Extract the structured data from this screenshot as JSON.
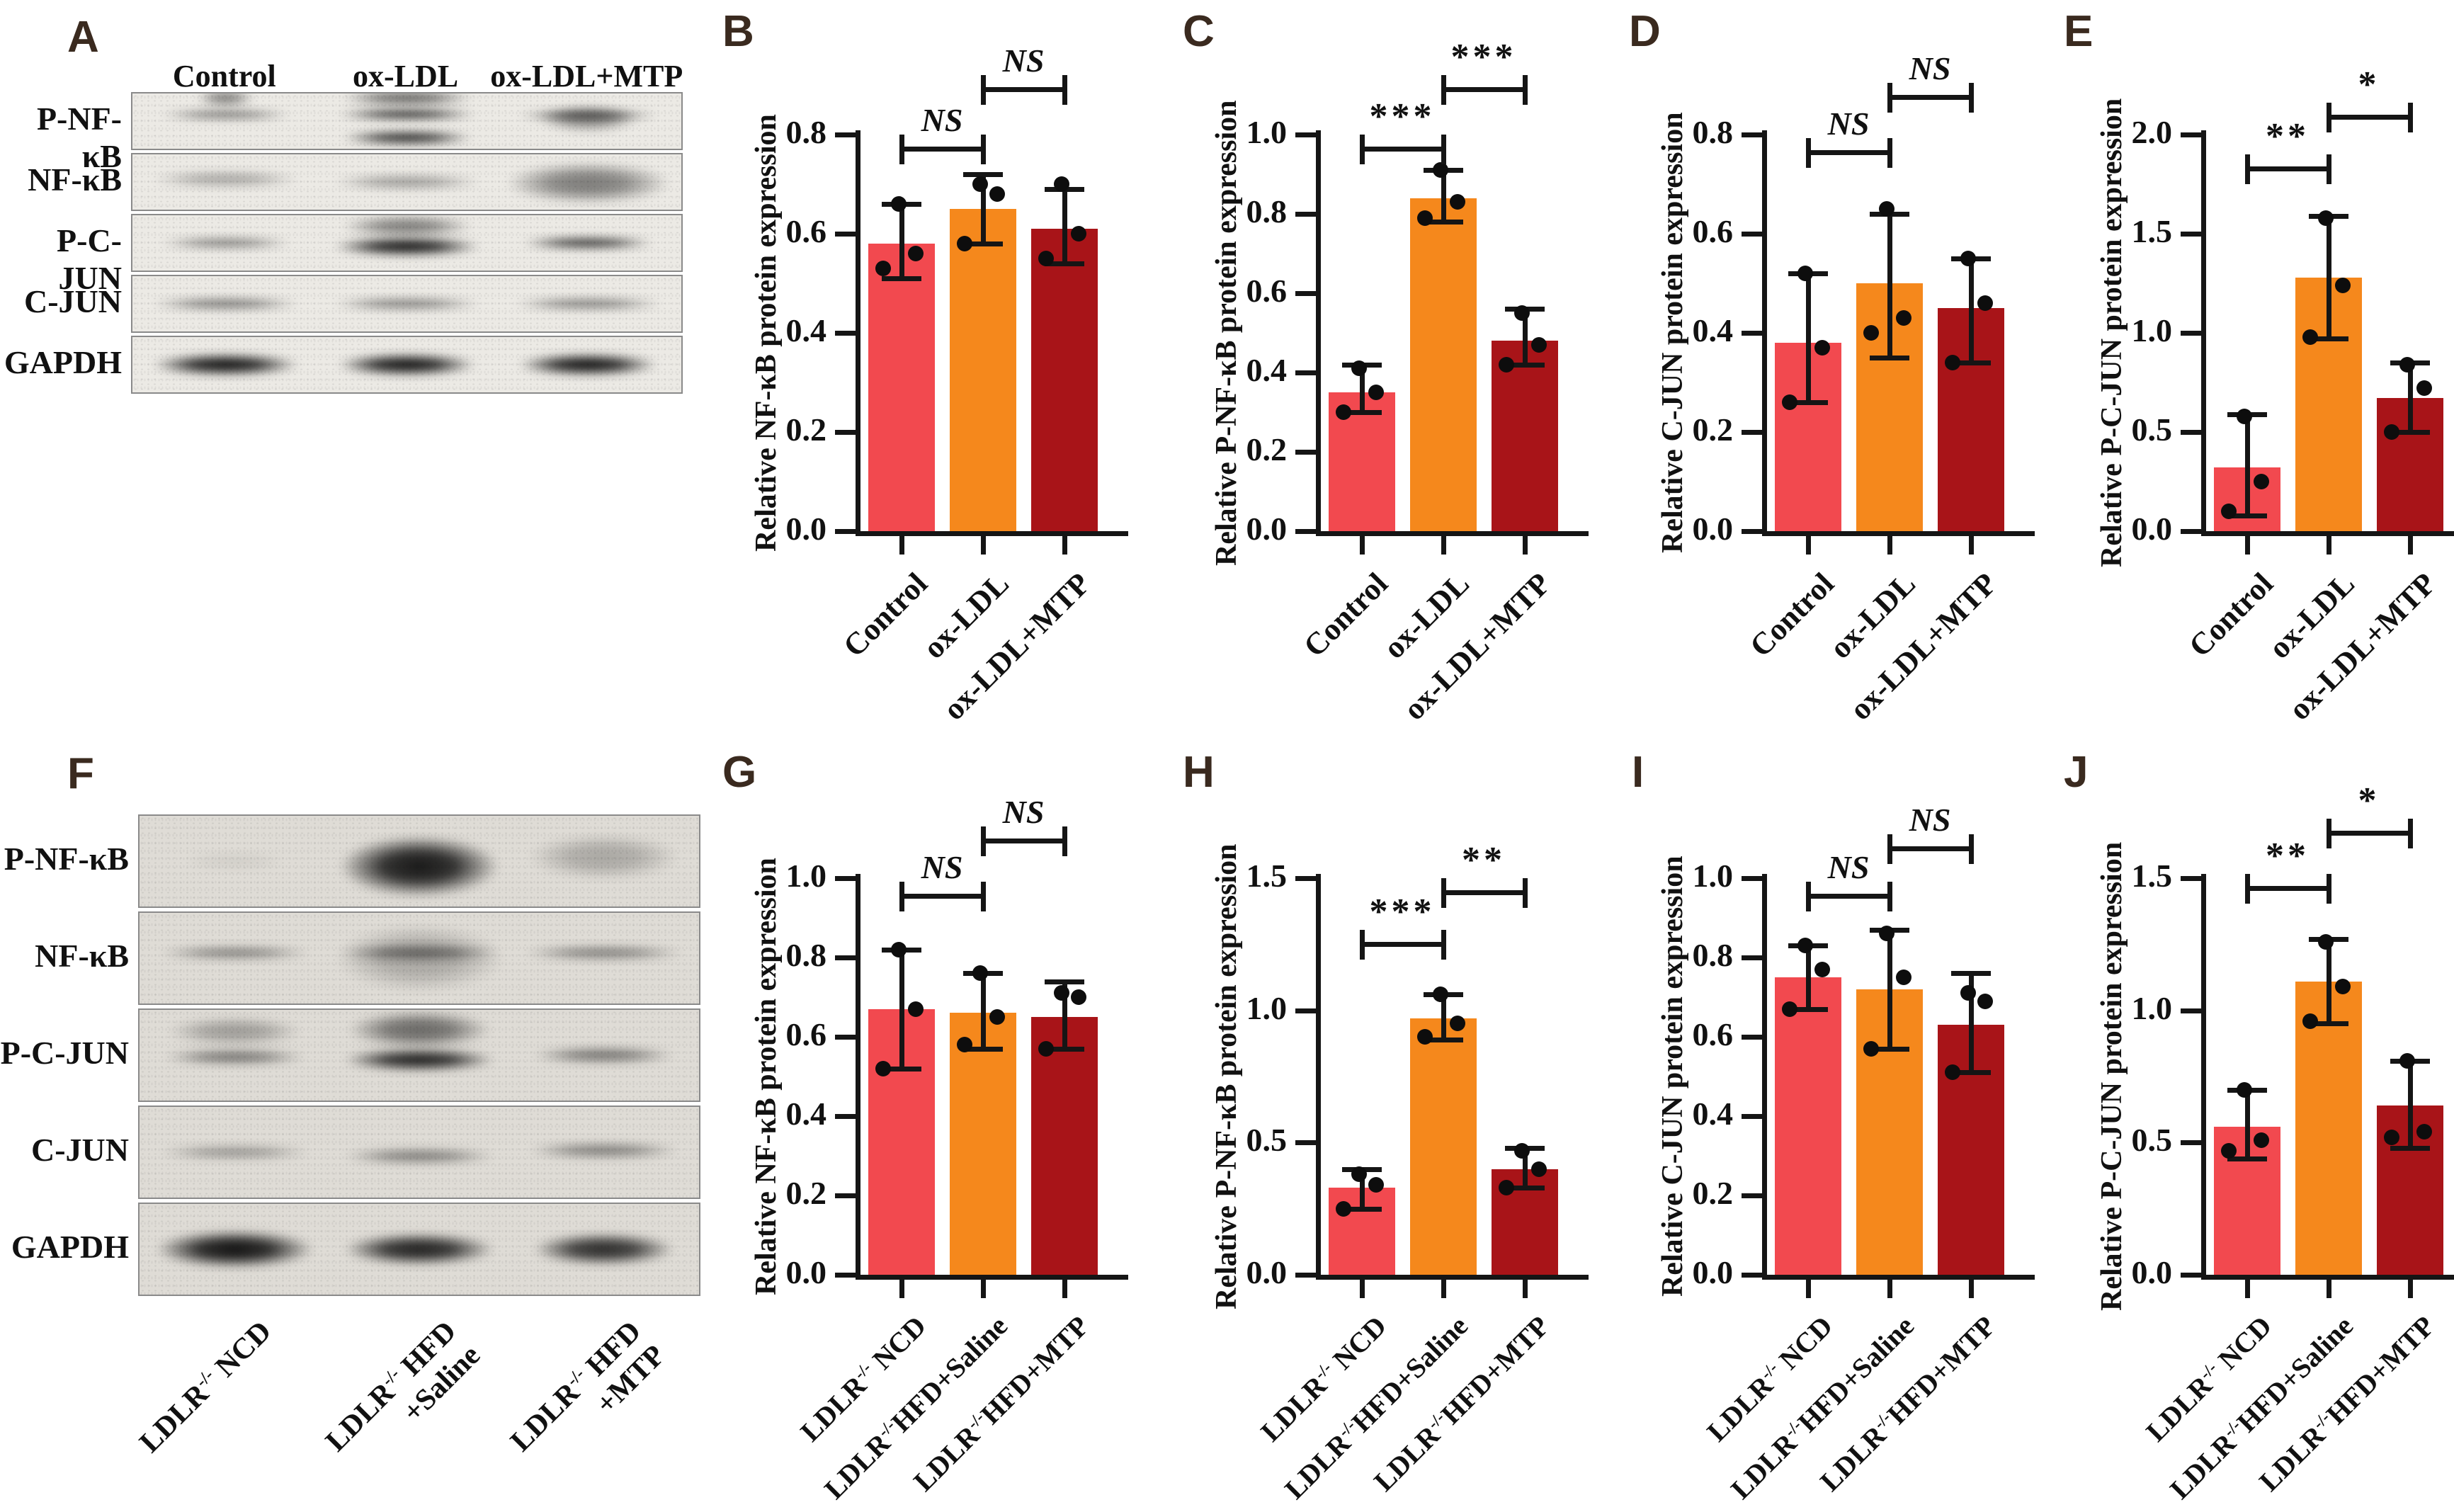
{
  "colors": {
    "bars": [
      "#F2494F",
      "#F5881C",
      "#A81418"
    ],
    "axis": "#151515",
    "panel_letter": "#3A2A1F"
  },
  "blots": {
    "A": {
      "letter": "A",
      "lane_headers": [
        "Control",
        "ox-LDL",
        "ox-LDL+MTP"
      ],
      "row_labels": [
        "P-NF-κB",
        "NF-κB",
        "P-C-JUN",
        "C-JUN",
        "GAPDH"
      ],
      "rows": [
        {
          "lanes": [
            [
              {
                "i": 0.55,
                "h": 0.18,
                "w": 0.8,
                "dy": -0.12
              },
              {
                "i": 0.5,
                "h": 0.3,
                "w": 0.35,
                "dy": -0.42
              }
            ],
            [
              {
                "i": 0.92,
                "h": 0.2,
                "w": 0.85,
                "dy": -0.12
              },
              {
                "i": 0.85,
                "h": 0.26,
                "w": 0.8,
                "dy": 0.3
              },
              {
                "i": 0.6,
                "h": 0.3,
                "w": 0.8,
                "dy": -0.42
              }
            ],
            [
              {
                "i": 0.72,
                "h": 0.18,
                "w": 0.85,
                "dy": -0.1
              },
              {
                "i": 0.4,
                "h": 0.5,
                "w": 0.6,
                "dy": -0.05
              }
            ]
          ]
        },
        {
          "lanes": [
            [
              {
                "i": 0.3,
                "h": 0.3,
                "w": 0.9,
                "dy": -0.05
              }
            ],
            [
              {
                "i": 0.35,
                "h": 0.28,
                "w": 0.9,
                "dy": 0
              }
            ],
            [
              {
                "i": 0.5,
                "h": 0.75,
                "w": 1.0,
                "dy": 0.02
              }
            ]
          ]
        },
        {
          "lanes": [
            [
              {
                "i": 0.5,
                "h": 0.2,
                "w": 0.8,
                "dy": 0
              }
            ],
            [
              {
                "i": 0.95,
                "h": 0.36,
                "w": 0.9,
                "dy": 0.06
              },
              {
                "i": 0.5,
                "h": 0.4,
                "w": 0.8,
                "dy": -0.3
              }
            ],
            [
              {
                "i": 0.8,
                "h": 0.24,
                "w": 0.8,
                "dy": 0
              }
            ]
          ]
        },
        {
          "lanes": [
            [
              {
                "i": 0.52,
                "h": 0.22,
                "w": 0.9,
                "dy": 0
              }
            ],
            [
              {
                "i": 0.48,
                "h": 0.22,
                "w": 0.9,
                "dy": 0
              }
            ],
            [
              {
                "i": 0.48,
                "h": 0.22,
                "w": 0.9,
                "dy": 0
              }
            ]
          ]
        },
        {
          "lanes": [
            [
              {
                "i": 0.97,
                "h": 0.4,
                "w": 0.9,
                "dy": 0
              }
            ],
            [
              {
                "i": 0.97,
                "h": 0.4,
                "w": 0.85,
                "dy": 0
              }
            ],
            [
              {
                "i": 0.97,
                "h": 0.4,
                "w": 0.85,
                "dy": 0
              }
            ]
          ]
        }
      ]
    },
    "F": {
      "letter": "F",
      "row_labels": [
        "P-NF-κB",
        "NF-κB",
        "P-C-JUN",
        "C-JUN",
        "GAPDH"
      ],
      "lane_labels": [
        {
          "pre": "LDLR",
          "sup": "-/-",
          "post": " NCD",
          "line2": ""
        },
        {
          "pre": "LDLR",
          "sup": "-/-",
          "post": " HFD",
          "line2": "+Saline"
        },
        {
          "pre": "LDLR",
          "sup": "-/-",
          "post": " HFD",
          "line2": "+MTP"
        }
      ],
      "rows": [
        {
          "lanes": [
            [
              {
                "i": 0.06,
                "h": 0.2,
                "w": 0.6,
                "dy": 0
              }
            ],
            [
              {
                "i": 0.95,
                "h": 0.68,
                "w": 0.95,
                "dy": 0.06
              }
            ],
            [
              {
                "i": 0.25,
                "h": 0.5,
                "w": 0.9,
                "dy": -0.05
              }
            ]
          ]
        },
        {
          "lanes": [
            [
              {
                "i": 0.45,
                "h": 0.15,
                "w": 0.9,
                "dy": -0.06
              }
            ],
            [
              {
                "i": 0.5,
                "h": 0.18,
                "w": 0.95,
                "dy": -0.06
              },
              {
                "i": 0.25,
                "h": 0.75,
                "w": 1.0,
                "dy": 0
              }
            ],
            [
              {
                "i": 0.45,
                "h": 0.16,
                "w": 0.95,
                "dy": -0.06
              }
            ]
          ]
        },
        {
          "lanes": [
            [
              {
                "i": 0.5,
                "h": 0.18,
                "w": 0.85,
                "dy": 0.02
              },
              {
                "i": 0.3,
                "h": 0.32,
                "w": 0.8,
                "dy": -0.26
              }
            ],
            [
              {
                "i": 0.9,
                "h": 0.26,
                "w": 0.9,
                "dy": 0.05
              },
              {
                "i": 0.55,
                "h": 0.42,
                "w": 0.85,
                "dy": -0.28
              }
            ],
            [
              {
                "i": 0.5,
                "h": 0.18,
                "w": 0.85,
                "dy": 0
              }
            ]
          ]
        },
        {
          "lanes": [
            [
              {
                "i": 0.35,
                "h": 0.16,
                "w": 0.9,
                "dy": 0
              }
            ],
            [
              {
                "i": 0.45,
                "h": 0.18,
                "w": 0.9,
                "dy": 0.04
              }
            ],
            [
              {
                "i": 0.45,
                "h": 0.18,
                "w": 0.9,
                "dy": -0.02
              }
            ]
          ]
        },
        {
          "lanes": [
            [
              {
                "i": 0.98,
                "h": 0.42,
                "w": 0.95,
                "dy": 0
              }
            ],
            [
              {
                "i": 0.9,
                "h": 0.36,
                "w": 0.9,
                "dy": 0
              }
            ],
            [
              {
                "i": 0.85,
                "h": 0.36,
                "w": 0.85,
                "dy": 0
              }
            ]
          ]
        }
      ]
    }
  },
  "chart_data": [
    {
      "id": "B",
      "type": "bar",
      "letter": "B",
      "ylabel": "Relative NF-κB protein expression",
      "ymax": 0.8,
      "yticks": [
        0,
        0.2,
        0.4,
        0.6,
        0.8
      ],
      "categories": [
        {
          "pre": "Control"
        },
        {
          "pre": "ox-LDL"
        },
        {
          "pre": "ox-LDL+MTP"
        }
      ],
      "values": [
        0.58,
        0.65,
        0.61
      ],
      "errors": [
        [
          0.51,
          0.66
        ],
        [
          0.58,
          0.72
        ],
        [
          0.54,
          0.69
        ]
      ],
      "dots": [
        [
          0.53,
          0.56,
          0.66
        ],
        [
          0.58,
          0.68,
          0.7
        ],
        [
          0.55,
          0.6,
          0.7
        ]
      ],
      "sig": [
        {
          "a": 0,
          "b": 1,
          "label": "NS",
          "h": 0.97
        },
        {
          "a": 1,
          "b": 2,
          "label": "NS",
          "h": 1.12
        }
      ]
    },
    {
      "id": "C",
      "type": "bar",
      "letter": "C",
      "ylabel": "Relative P-NF-κB protein expression",
      "ymax": 1.0,
      "yticks": [
        0,
        0.2,
        0.4,
        0.6,
        0.8,
        1.0
      ],
      "categories": [
        {
          "pre": "Control"
        },
        {
          "pre": "ox-LDL"
        },
        {
          "pre": "ox-LDL+MTP"
        }
      ],
      "values": [
        0.35,
        0.84,
        0.48
      ],
      "errors": [
        [
          0.3,
          0.42
        ],
        [
          0.78,
          0.91
        ],
        [
          0.42,
          0.56
        ]
      ],
      "dots": [
        [
          0.3,
          0.35,
          0.41
        ],
        [
          0.79,
          0.83,
          0.91
        ],
        [
          0.42,
          0.47,
          0.55
        ]
      ],
      "sig": [
        {
          "a": 0,
          "b": 1,
          "label": "***",
          "h": 0.97
        },
        {
          "a": 1,
          "b": 2,
          "label": "***",
          "h": 1.12
        }
      ]
    },
    {
      "id": "D",
      "type": "bar",
      "letter": "D",
      "ylabel": "Relative C-JUN protein expression",
      "ymax": 0.8,
      "yticks": [
        0,
        0.2,
        0.4,
        0.6,
        0.8
      ],
      "categories": [
        {
          "pre": "Control"
        },
        {
          "pre": "ox-LDL"
        },
        {
          "pre": "ox-LDL+MTP"
        }
      ],
      "values": [
        0.38,
        0.5,
        0.45
      ],
      "errors": [
        [
          0.26,
          0.52
        ],
        [
          0.35,
          0.64
        ],
        [
          0.34,
          0.55
        ]
      ],
      "dots": [
        [
          0.26,
          0.37,
          0.52
        ],
        [
          0.4,
          0.43,
          0.65
        ],
        [
          0.34,
          0.46,
          0.55
        ]
      ],
      "sig": [
        {
          "a": 0,
          "b": 1,
          "label": "NS",
          "h": 0.96
        },
        {
          "a": 1,
          "b": 2,
          "label": "NS",
          "h": 1.1
        }
      ]
    },
    {
      "id": "E",
      "type": "bar",
      "letter": "E",
      "ylabel": "Relative P-C-JUN protein expression",
      "ymax": 2.0,
      "yticks": [
        0,
        0.5,
        1.0,
        1.5,
        2.0
      ],
      "categories": [
        {
          "pre": "Control"
        },
        {
          "pre": "ox-LDL"
        },
        {
          "pre": "ox-LDL+MTP"
        }
      ],
      "values": [
        0.32,
        1.28,
        0.67
      ],
      "errors": [
        [
          0.08,
          0.59
        ],
        [
          0.97,
          1.59
        ],
        [
          0.5,
          0.85
        ]
      ],
      "dots": [
        [
          0.1,
          0.25,
          0.58
        ],
        [
          0.98,
          1.24,
          1.58
        ],
        [
          0.5,
          0.72,
          0.84
        ]
      ],
      "sig": [
        {
          "a": 0,
          "b": 1,
          "label": "**",
          "h": 0.92
        },
        {
          "a": 1,
          "b": 2,
          "label": "*",
          "h": 1.05
        }
      ]
    },
    {
      "id": "G",
      "type": "bar",
      "letter": "G",
      "ylabel": "Relative NF-κB protein expression",
      "ymax": 1.0,
      "yticks": [
        0,
        0.2,
        0.4,
        0.6,
        0.8,
        1.0
      ],
      "categories": [
        {
          "pre": "LDLR",
          "sup": "-/-",
          "post": " NCD"
        },
        {
          "pre": "LDLR",
          "sup": "-/-",
          "post": "HFD+Saline"
        },
        {
          "pre": "LDLR",
          "sup": "-/-",
          "post": "HFD+MTP"
        }
      ],
      "values": [
        0.67,
        0.66,
        0.65
      ],
      "errors": [
        [
          0.52,
          0.82
        ],
        [
          0.57,
          0.76
        ],
        [
          0.57,
          0.74
        ]
      ],
      "dots": [
        [
          0.52,
          0.67,
          0.82
        ],
        [
          0.58,
          0.65,
          0.76
        ],
        [
          0.57,
          0.7,
          0.71
        ]
      ],
      "sig": [
        {
          "a": 0,
          "b": 1,
          "label": "NS",
          "h": 0.96
        },
        {
          "a": 1,
          "b": 2,
          "label": "NS",
          "h": 1.1
        }
      ]
    },
    {
      "id": "H",
      "type": "bar",
      "letter": "H",
      "ylabel": "Relative P-NF-κB protein expression",
      "ymax": 1.5,
      "yticks": [
        0,
        0.5,
        1.0,
        1.5
      ],
      "categories": [
        {
          "pre": "LDLR",
          "sup": "-/-",
          "post": " NCD"
        },
        {
          "pre": "LDLR",
          "sup": "-/-",
          "post": "HFD+Saline"
        },
        {
          "pre": "LDLR",
          "sup": "-/-",
          "post": "HFD+MTP"
        }
      ],
      "values": [
        0.33,
        0.97,
        0.4
      ],
      "errors": [
        [
          0.25,
          0.4
        ],
        [
          0.89,
          1.06
        ],
        [
          0.33,
          0.48
        ]
      ],
      "dots": [
        [
          0.25,
          0.34,
          0.38
        ],
        [
          0.9,
          0.95,
          1.06
        ],
        [
          0.33,
          0.4,
          0.47
        ]
      ],
      "sig": [
        {
          "a": 0,
          "b": 1,
          "label": "***",
          "h": 0.84
        },
        {
          "a": 1,
          "b": 2,
          "label": "**",
          "h": 0.97
        }
      ]
    },
    {
      "id": "I",
      "type": "bar",
      "letter": "I",
      "ylabel": "Relative C-JUN protein expression",
      "ymax": 1.0,
      "yticks": [
        0,
        0.2,
        0.4,
        0.6,
        0.8,
        1.0
      ],
      "categories": [
        {
          "pre": "LDLR",
          "sup": "-/-",
          "post": " NCD"
        },
        {
          "pre": "LDLR",
          "sup": "-/-",
          "post": "HFD+Saline"
        },
        {
          "pre": "LDLR",
          "sup": "-/-",
          "post": "HFD+MTP"
        }
      ],
      "values": [
        0.75,
        0.72,
        0.63
      ],
      "errors": [
        [
          0.67,
          0.83
        ],
        [
          0.57,
          0.87
        ],
        [
          0.51,
          0.76
        ]
      ],
      "dots": [
        [
          0.67,
          0.77,
          0.83
        ],
        [
          0.57,
          0.75,
          0.86
        ],
        [
          0.51,
          0.69,
          0.71
        ]
      ],
      "sig": [
        {
          "a": 0,
          "b": 1,
          "label": "NS",
          "h": 0.96
        },
        {
          "a": 1,
          "b": 2,
          "label": "NS",
          "h": 1.08
        }
      ]
    },
    {
      "id": "J",
      "type": "bar",
      "letter": "J",
      "ylabel": "Relative P-C-JUN protein expression",
      "ymax": 1.5,
      "yticks": [
        0,
        0.5,
        1.0,
        1.5
      ],
      "categories": [
        {
          "pre": "LDLR",
          "sup": "-/-",
          "post": " NCD"
        },
        {
          "pre": "LDLR",
          "sup": "-/-",
          "post": "HFD+Saline"
        },
        {
          "pre": "LDLR",
          "sup": "-/-",
          "post": "HFD+MTP"
        }
      ],
      "values": [
        0.56,
        1.11,
        0.64
      ],
      "errors": [
        [
          0.44,
          0.7
        ],
        [
          0.95,
          1.27
        ],
        [
          0.48,
          0.81
        ]
      ],
      "dots": [
        [
          0.47,
          0.51,
          0.7
        ],
        [
          0.96,
          1.09,
          1.26
        ],
        [
          0.52,
          0.54,
          0.81
        ]
      ],
      "sig": [
        {
          "a": 0,
          "b": 1,
          "label": "**",
          "h": 0.98
        },
        {
          "a": 1,
          "b": 2,
          "label": "*",
          "h": 1.12
        }
      ]
    }
  ]
}
